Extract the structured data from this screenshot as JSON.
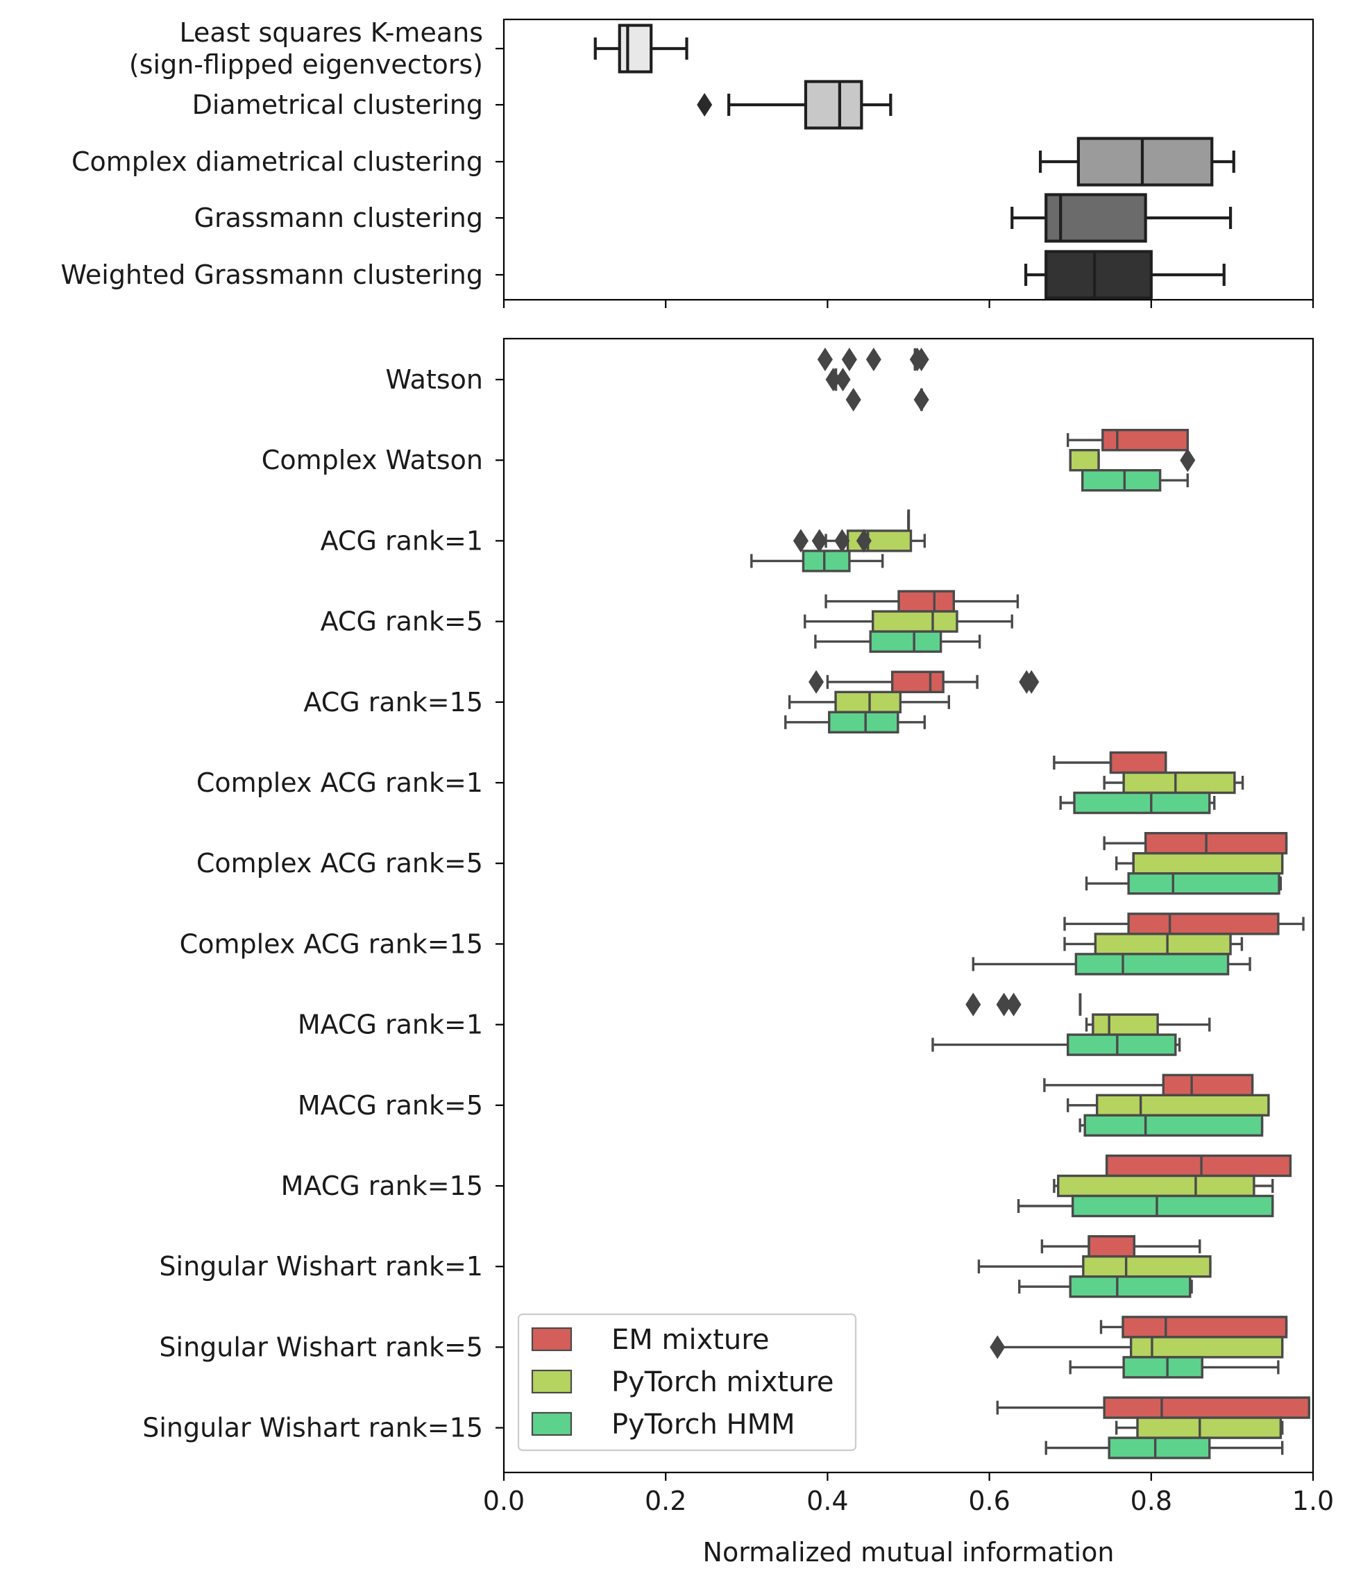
{
  "chart_data": [
    {
      "type": "boxplot",
      "orientation": "horizontal",
      "xlim": [
        0.0,
        1.0
      ],
      "xticks": [
        "0.0",
        "0.2",
        "0.4",
        "0.6",
        "0.8",
        "1.0"
      ],
      "xlabel": "",
      "categories": [
        "Least squares K-means\n(sign-flipped eigenvectors)",
        "Diametrical clustering",
        "Complex diametrical clustering",
        "Grassmann clustering",
        "Weighted Grassmann clustering"
      ],
      "boxes": [
        {
          "category": 0,
          "color": "#e8e8e8",
          "whislo": 0.113,
          "q1": 0.143,
          "med": 0.153,
          "q3": 0.182,
          "whishi": 0.226,
          "outliers": []
        },
        {
          "category": 1,
          "color": "#c8c8c8",
          "whislo": 0.278,
          "q1": 0.373,
          "med": 0.415,
          "q3": 0.442,
          "whishi": 0.478,
          "outliers": [
            0.248
          ]
        },
        {
          "category": 2,
          "color": "#9b9b9b",
          "whislo": 0.663,
          "q1": 0.71,
          "med": 0.789,
          "q3": 0.875,
          "whishi": 0.902,
          "outliers": []
        },
        {
          "category": 3,
          "color": "#6b6b6b",
          "whislo": 0.628,
          "q1": 0.67,
          "med": 0.688,
          "q3": 0.793,
          "whishi": 0.898,
          "outliers": []
        },
        {
          "category": 4,
          "color": "#333333",
          "whislo": 0.645,
          "q1": 0.67,
          "med": 0.73,
          "q3": 0.8,
          "whishi": 0.89,
          "outliers": []
        }
      ]
    },
    {
      "type": "boxplot",
      "orientation": "horizontal",
      "xlim": [
        0.0,
        1.0
      ],
      "xticks": [
        "0.0",
        "0.2",
        "0.4",
        "0.6",
        "0.8",
        "1.0"
      ],
      "xlabel": "Normalized mutual information",
      "legend": {
        "location": "lower-left",
        "entries": [
          {
            "name": "EM mixture",
            "color": "#d45f5a"
          },
          {
            "name": "PyTorch mixture",
            "color": "#b5d35f"
          },
          {
            "name": "PyTorch HMM",
            "color": "#5dd28d"
          }
        ]
      },
      "categories": [
        "Watson",
        "Complex Watson",
        "ACG rank=1",
        "ACG rank=5",
        "ACG rank=15",
        "Complex ACG rank=1",
        "Complex ACG rank=5",
        "Complex ACG rank=15",
        "MACG rank=1",
        "MACG rank=5",
        "MACG rank=15",
        "Singular Wishart rank=1",
        "Singular Wishart rank=5",
        "Singular Wishart rank=15"
      ],
      "series": [
        {
          "name": "EM mixture",
          "color": "#d45f5a",
          "boxes": [
            {
              "category": 0,
              "whislo": 0.508,
              "q1": 0.508,
              "med": 0.508,
              "q3": 0.508,
              "whishi": 0.508,
              "outliers": [
                0.397,
                0.427,
                0.457,
                0.511,
                0.516
              ]
            },
            {
              "category": 1,
              "whislo": 0.697,
              "q1": 0.74,
              "med": 0.758,
              "q3": 0.845,
              "whishi": 0.845,
              "outliers": []
            },
            {
              "category": 2,
              "whislo": 0.5,
              "q1": 0.5,
              "med": 0.5,
              "q3": 0.5,
              "whishi": 0.5,
              "outliers": []
            },
            {
              "category": 3,
              "whislo": 0.398,
              "q1": 0.488,
              "med": 0.532,
              "q3": 0.556,
              "whishi": 0.635,
              "outliers": []
            },
            {
              "category": 4,
              "whislo": 0.4,
              "q1": 0.48,
              "med": 0.527,
              "q3": 0.543,
              "whishi": 0.585,
              "outliers": [
                0.386,
                0.646,
                0.652
              ]
            },
            {
              "category": 5,
              "whislo": 0.68,
              "q1": 0.75,
              "med": 0.75,
              "q3": 0.818,
              "whishi": 0.818,
              "outliers": []
            },
            {
              "category": 6,
              "whislo": 0.742,
              "q1": 0.793,
              "med": 0.868,
              "q3": 0.967,
              "whishi": 0.967,
              "outliers": []
            },
            {
              "category": 7,
              "whislo": 0.693,
              "q1": 0.772,
              "med": 0.823,
              "q3": 0.957,
              "whishi": 0.988,
              "outliers": []
            },
            {
              "category": 8,
              "whislo": 0.712,
              "q1": 0.712,
              "med": 0.712,
              "q3": 0.712,
              "whishi": 0.712,
              "outliers": [
                0.58,
                0.618,
                0.63
              ]
            },
            {
              "category": 9,
              "whislo": 0.668,
              "q1": 0.815,
              "med": 0.85,
              "q3": 0.925,
              "whishi": 0.925,
              "outliers": []
            },
            {
              "category": 10,
              "whislo": 0.745,
              "q1": 0.745,
              "med": 0.862,
              "q3": 0.972,
              "whishi": 0.972,
              "outliers": []
            },
            {
              "category": 11,
              "whislo": 0.665,
              "q1": 0.723,
              "med": 0.723,
              "q3": 0.779,
              "whishi": 0.86,
              "outliers": []
            },
            {
              "category": 12,
              "whislo": 0.738,
              "q1": 0.765,
              "med": 0.818,
              "q3": 0.967,
              "whishi": 0.967,
              "outliers": []
            },
            {
              "category": 13,
              "whislo": 0.61,
              "q1": 0.742,
              "med": 0.813,
              "q3": 0.995,
              "whishi": 0.995,
              "outliers": []
            }
          ]
        },
        {
          "name": "PyTorch mixture",
          "color": "#b5d35f",
          "boxes": [
            {
              "category": 0,
              "whislo": 0.41,
              "q1": 0.41,
              "med": 0.41,
              "q3": 0.41,
              "whishi": 0.41,
              "outliers": [
                0.407,
                0.419
              ]
            },
            {
              "category": 1,
              "whislo": 0.7,
              "q1": 0.7,
              "med": 0.7,
              "q3": 0.735,
              "whishi": 0.735,
              "outliers": [
                0.845
              ]
            },
            {
              "category": 2,
              "whislo": 0.398,
              "q1": 0.425,
              "med": 0.45,
              "q3": 0.503,
              "whishi": 0.52,
              "outliers": [
                0.367,
                0.39,
                0.418,
                0.445
              ]
            },
            {
              "category": 3,
              "whislo": 0.372,
              "q1": 0.456,
              "med": 0.53,
              "q3": 0.56,
              "whishi": 0.628,
              "outliers": []
            },
            {
              "category": 4,
              "whislo": 0.353,
              "q1": 0.41,
              "med": 0.452,
              "q3": 0.49,
              "whishi": 0.55,
              "outliers": []
            },
            {
              "category": 5,
              "whislo": 0.742,
              "q1": 0.766,
              "med": 0.83,
              "q3": 0.903,
              "whishi": 0.913,
              "outliers": []
            },
            {
              "category": 6,
              "whislo": 0.757,
              "q1": 0.778,
              "med": 0.778,
              "q3": 0.962,
              "whishi": 0.962,
              "outliers": []
            },
            {
              "category": 7,
              "whislo": 0.693,
              "q1": 0.731,
              "med": 0.82,
              "q3": 0.898,
              "whishi": 0.912,
              "outliers": []
            },
            {
              "category": 8,
              "whislo": 0.72,
              "q1": 0.728,
              "med": 0.748,
              "q3": 0.808,
              "whishi": 0.872,
              "outliers": []
            },
            {
              "category": 9,
              "whislo": 0.697,
              "q1": 0.733,
              "med": 0.787,
              "q3": 0.945,
              "whishi": 0.945,
              "outliers": []
            },
            {
              "category": 10,
              "whislo": 0.68,
              "q1": 0.685,
              "med": 0.855,
              "q3": 0.927,
              "whishi": 0.95,
              "outliers": []
            },
            {
              "category": 11,
              "whislo": 0.587,
              "q1": 0.716,
              "med": 0.769,
              "q3": 0.873,
              "whishi": 0.873,
              "outliers": []
            },
            {
              "category": 12,
              "whislo": 0.608,
              "q1": 0.775,
              "med": 0.801,
              "q3": 0.962,
              "whishi": 0.962,
              "outliers": [
                0.61
              ]
            },
            {
              "category": 13,
              "whislo": 0.757,
              "q1": 0.783,
              "med": 0.86,
              "q3": 0.96,
              "whishi": 0.962,
              "outliers": []
            }
          ]
        },
        {
          "name": "PyTorch HMM",
          "color": "#5dd28d",
          "boxes": [
            {
              "category": 0,
              "whislo": 0.516,
              "q1": 0.516,
              "med": 0.516,
              "q3": 0.516,
              "whishi": 0.516,
              "outliers": [
                0.432,
                0.516
              ]
            },
            {
              "category": 1,
              "whislo": 0.715,
              "q1": 0.715,
              "med": 0.767,
              "q3": 0.811,
              "whishi": 0.845,
              "outliers": []
            },
            {
              "category": 2,
              "whislo": 0.306,
              "q1": 0.37,
              "med": 0.396,
              "q3": 0.427,
              "whishi": 0.468,
              "outliers": []
            },
            {
              "category": 3,
              "whislo": 0.385,
              "q1": 0.453,
              "med": 0.507,
              "q3": 0.54,
              "whishi": 0.588,
              "outliers": []
            },
            {
              "category": 4,
              "whislo": 0.348,
              "q1": 0.402,
              "med": 0.447,
              "q3": 0.487,
              "whishi": 0.52,
              "outliers": []
            },
            {
              "category": 5,
              "whislo": 0.688,
              "q1": 0.705,
              "med": 0.8,
              "q3": 0.872,
              "whishi": 0.878,
              "outliers": []
            },
            {
              "category": 6,
              "whislo": 0.72,
              "q1": 0.772,
              "med": 0.827,
              "q3": 0.958,
              "whishi": 0.96,
              "outliers": []
            },
            {
              "category": 7,
              "whislo": 0.58,
              "q1": 0.707,
              "med": 0.765,
              "q3": 0.895,
              "whishi": 0.922,
              "outliers": []
            },
            {
              "category": 8,
              "whislo": 0.53,
              "q1": 0.697,
              "med": 0.758,
              "q3": 0.83,
              "whishi": 0.835,
              "outliers": []
            },
            {
              "category": 9,
              "whislo": 0.712,
              "q1": 0.718,
              "med": 0.793,
              "q3": 0.937,
              "whishi": 0.937,
              "outliers": []
            },
            {
              "category": 10,
              "whislo": 0.636,
              "q1": 0.703,
              "med": 0.807,
              "q3": 0.95,
              "whishi": 0.95,
              "outliers": []
            },
            {
              "category": 11,
              "whislo": 0.637,
              "q1": 0.7,
              "med": 0.758,
              "q3": 0.848,
              "whishi": 0.85,
              "outliers": []
            },
            {
              "category": 12,
              "whislo": 0.7,
              "q1": 0.766,
              "med": 0.82,
              "q3": 0.863,
              "whishi": 0.957,
              "outliers": []
            },
            {
              "category": 13,
              "whislo": 0.67,
              "q1": 0.748,
              "med": 0.805,
              "q3": 0.872,
              "whishi": 0.962,
              "outliers": []
            }
          ]
        }
      ]
    }
  ]
}
